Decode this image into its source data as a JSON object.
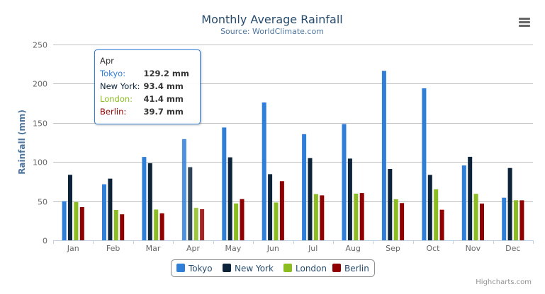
{
  "chart_data": {
    "type": "bar",
    "title": "Monthly Average Rainfall",
    "subtitle": "Source: WorldClimate.com",
    "xlabel": "",
    "ylabel": "Rainfall (mm)",
    "ylim": [
      0,
      250
    ],
    "yticks": [
      "0",
      "50",
      "100",
      "150",
      "200",
      "250"
    ],
    "grid": true,
    "legend_position": "bottom",
    "categories": [
      "Jan",
      "Feb",
      "Mar",
      "Apr",
      "May",
      "Jun",
      "Jul",
      "Aug",
      "Sep",
      "Oct",
      "Nov",
      "Dec"
    ],
    "series": [
      {
        "name": "Tokyo",
        "color": "#2f7ed8",
        "values": [
          49.9,
          71.5,
          106.4,
          129.2,
          144.0,
          176.0,
          135.6,
          148.5,
          216.4,
          194.1,
          95.6,
          54.4
        ]
      },
      {
        "name": "New York",
        "color": "#0d233a",
        "values": [
          83.6,
          78.8,
          98.5,
          93.4,
          106.0,
          84.5,
          105.0,
          104.3,
          91.2,
          83.5,
          106.6,
          92.3
        ]
      },
      {
        "name": "London",
        "color": "#8bbc21",
        "values": [
          48.9,
          38.8,
          39.3,
          41.4,
          47.0,
          48.3,
          59.0,
          59.6,
          52.4,
          65.2,
          59.3,
          51.2
        ]
      },
      {
        "name": "Berlin",
        "color": "#910000",
        "values": [
          42.4,
          33.2,
          34.5,
          39.7,
          52.6,
          75.5,
          57.4,
          60.4,
          47.6,
          39.1,
          46.8,
          51.1
        ]
      }
    ]
  },
  "tooltip": {
    "header": "Apr",
    "rows": [
      {
        "label": "Tokyo:",
        "value": "129.2 mm",
        "color": "#2f7ed8"
      },
      {
        "label": "New York:",
        "value": "93.4 mm",
        "color": "#0d233a"
      },
      {
        "label": "London:",
        "value": "41.4 mm",
        "color": "#8bbc21"
      },
      {
        "label": "Berlin:",
        "value": "39.7 mm",
        "color": "#910000"
      }
    ]
  },
  "menu_icon": "hamburger-menu-icon",
  "credits": "Highcharts.com"
}
